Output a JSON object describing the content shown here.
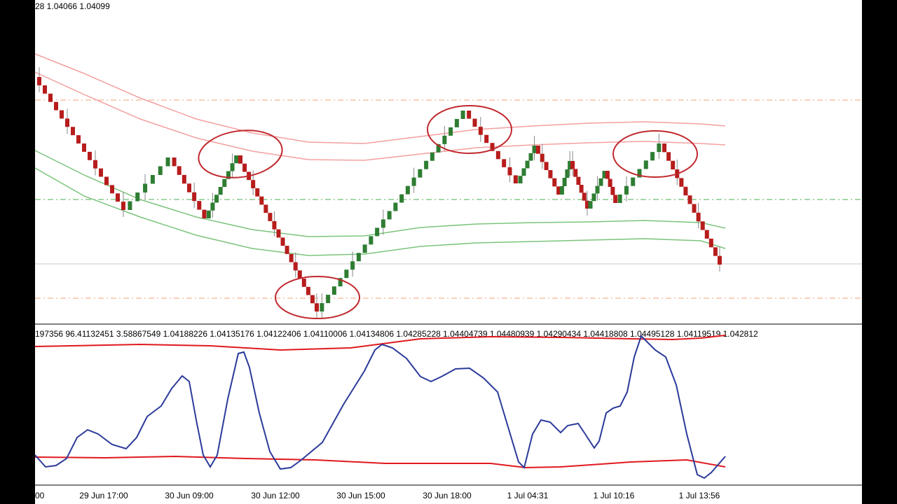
{
  "header": {
    "text": "28 1.04066 1.04099"
  },
  "indicator": {
    "values_text": "197356 96.41132451 3.58867549 1.04188226 1.04135176 1.04122406 1.04110006 1.04134806 1.04285228 1.04404739 1.04480939 1.04290434 1.04418808 1.04495128 1.04119519 1.042812"
  },
  "time_axis": {
    "labels": [
      "00",
      "29 Jun 17:00",
      "30 Jun 09:00",
      "30 Jun 12:00",
      "30 Jun 15:00",
      "30 Jun 18:00",
      "1 Jul 04:31",
      "1 Jul 10:16",
      "1 Jul 13:56"
    ]
  }
}
